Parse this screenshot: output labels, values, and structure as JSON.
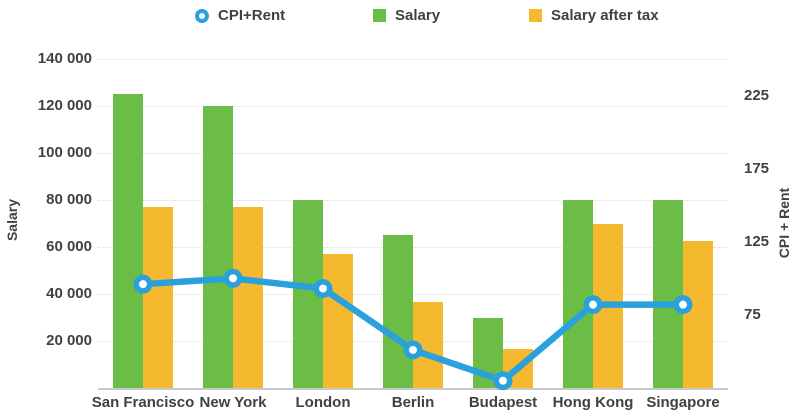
{
  "chart_data": {
    "type": "combo-bar-line",
    "categories": [
      "San Francisco",
      "New York",
      "London",
      "Berlin",
      "Budapest",
      "Hong Kong",
      "Singapore"
    ],
    "bar_series": [
      {
        "name": "Salary",
        "color": "#6BBD46",
        "values": [
          125000,
          120000,
          80000,
          65000,
          30000,
          80000,
          80000
        ]
      },
      {
        "name": "Salary after tax",
        "color": "#F5B92F",
        "values": [
          77000,
          77000,
          57000,
          36500,
          16500,
          70000,
          62500
        ]
      }
    ],
    "line_series": {
      "name": "CPI+Rent",
      "color": "#2AA1DB",
      "axis": "right",
      "marker": "ring",
      "values": [
        96,
        100,
        93,
        51,
        30,
        82,
        82
      ]
    },
    "left_axis": {
      "title": "Salary",
      "range": [
        0,
        140000
      ],
      "ticks": [
        {
          "value": 20000,
          "label": "20 000"
        },
        {
          "value": 40000,
          "label": "40 000"
        },
        {
          "value": 60000,
          "label": "60 000"
        },
        {
          "value": 80000,
          "label": "80 000"
        },
        {
          "value": 100000,
          "label": "100 000"
        },
        {
          "value": 120000,
          "label": "120 000"
        },
        {
          "value": 140000,
          "label": "140 000"
        }
      ]
    },
    "right_axis": {
      "title": "CPI + Rent",
      "range": [
        25,
        250
      ],
      "ticks": [
        {
          "value": 75,
          "label": "75"
        },
        {
          "value": 125,
          "label": "125"
        },
        {
          "value": 175,
          "label": "175"
        },
        {
          "value": 225,
          "label": "225"
        }
      ]
    },
    "grid": true,
    "legend_position": "top"
  }
}
